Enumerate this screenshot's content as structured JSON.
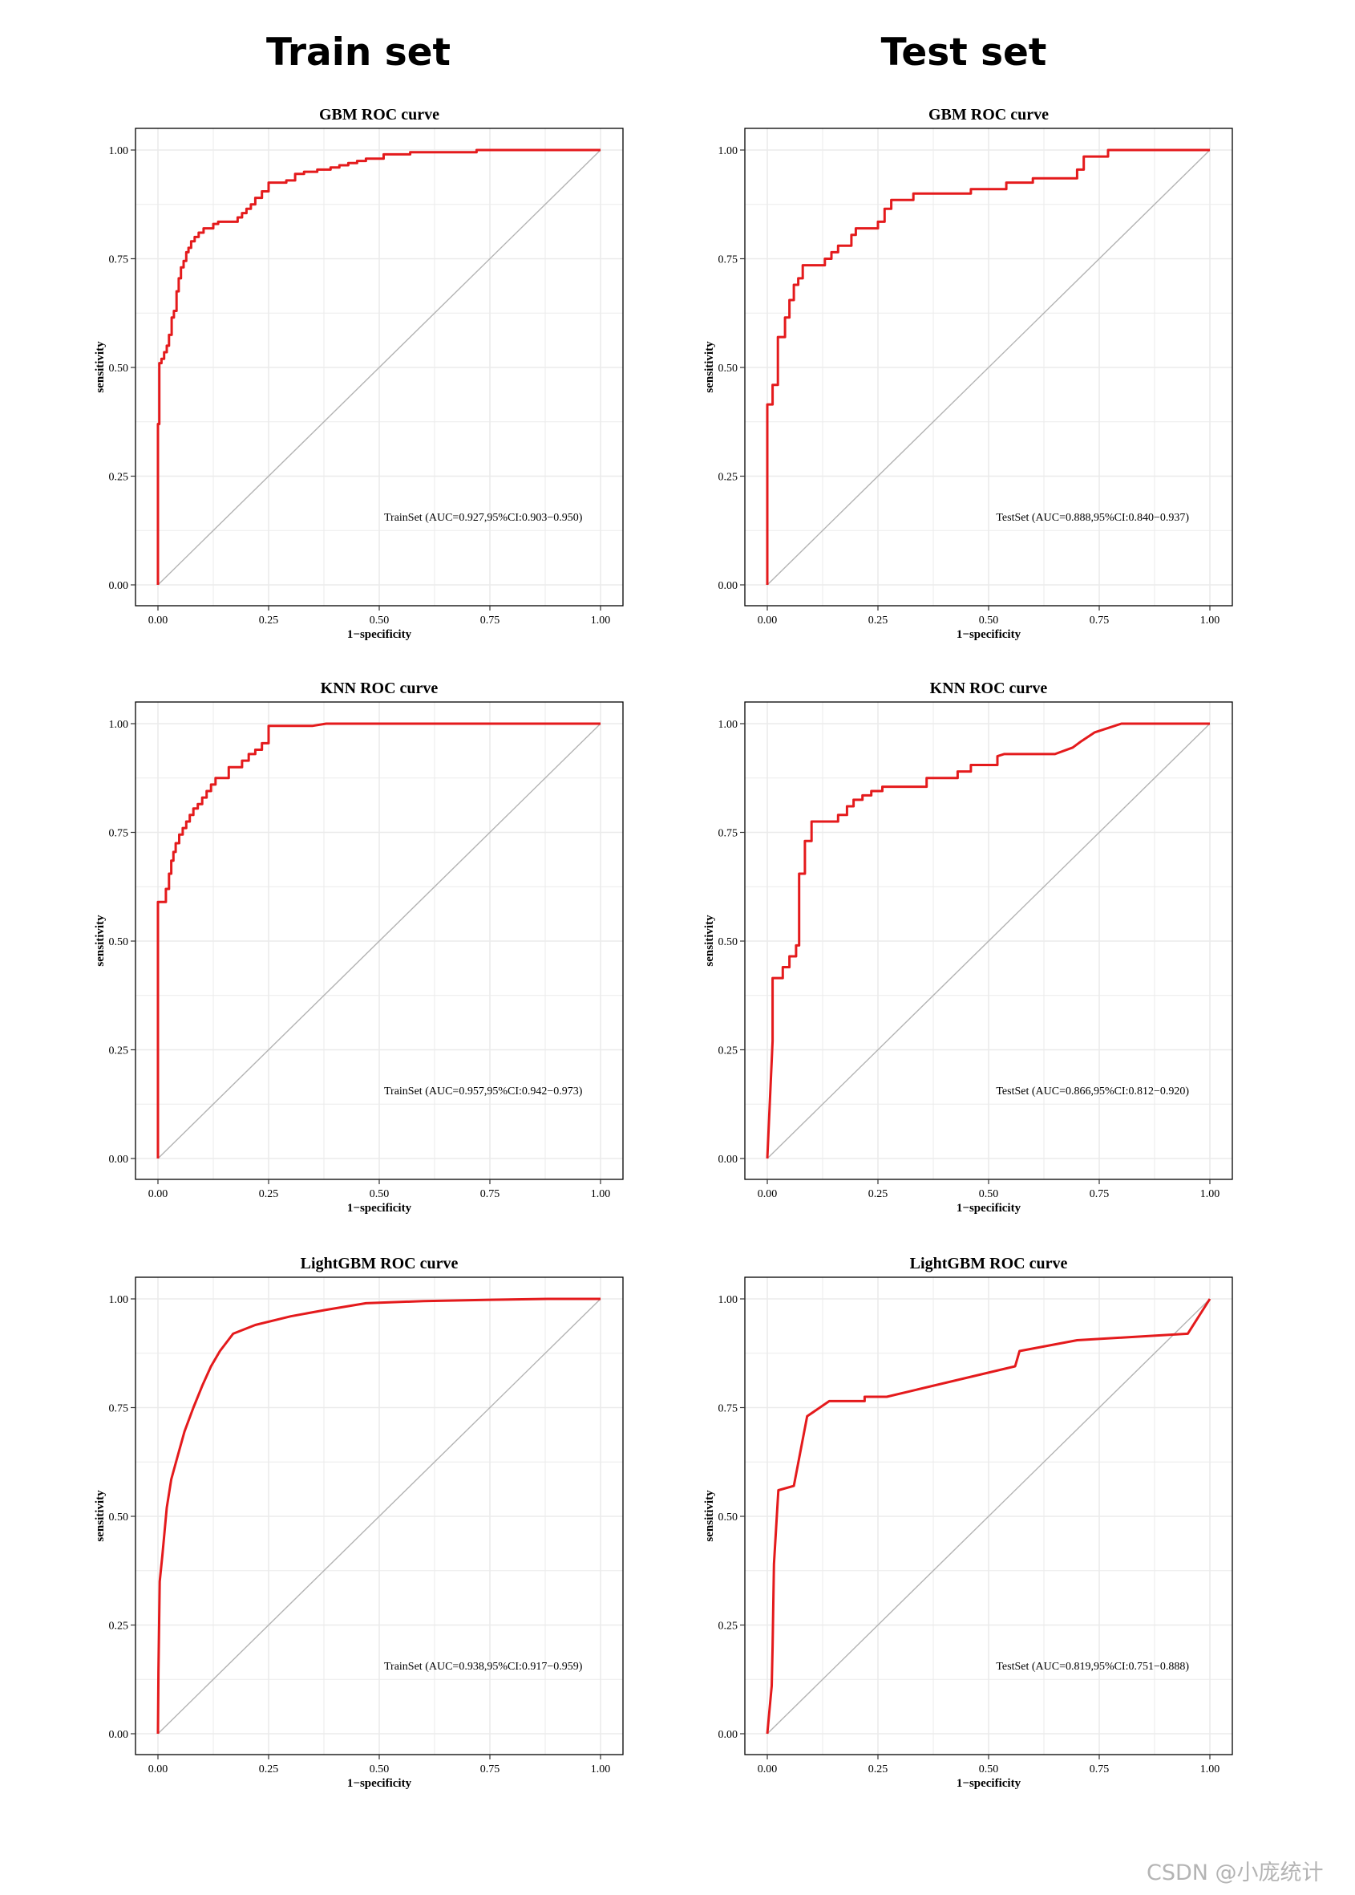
{
  "column_titles": {
    "train": "Train set",
    "test": "Test set"
  },
  "watermark": "CSDN @小庞统计",
  "colors": {
    "curve": "#e41a1c",
    "diagonal": "#b3b3b3",
    "grid": "#ebebeb",
    "frame": "#000000"
  },
  "chart_data": [
    {
      "type": "line",
      "title": "GBM ROC curve",
      "xlabel": "1−specificity",
      "ylabel": "sensitivity",
      "xlim": [
        0,
        1
      ],
      "ylim": [
        0,
        1
      ],
      "xticks": [
        "0.00",
        "0.25",
        "0.50",
        "0.75",
        "1.00"
      ],
      "yticks": [
        "0.00",
        "0.25",
        "0.50",
        "0.75",
        "1.00"
      ],
      "grid": true,
      "legend": "",
      "annotation": "TrainSet (AUC=0.927,95%CI:0.903−0.950)",
      "series": [
        {
          "step": true,
          "x": [
            0,
            0,
            0.003,
            0.003,
            0.008,
            0.008,
            0.014,
            0.014,
            0.02,
            0.02,
            0.025,
            0.025,
            0.031,
            0.031,
            0.036,
            0.036,
            0.042,
            0.042,
            0.047,
            0.047,
            0.052,
            0.052,
            0.058,
            0.058,
            0.064,
            0.064,
            0.069,
            0.069,
            0.075,
            0.075,
            0.083,
            0.083,
            0.092,
            0.092,
            0.103,
            0.103,
            0.125,
            0.125,
            0.136,
            0.136,
            0.18,
            0.18,
            0.19,
            0.19,
            0.2,
            0.2,
            0.21,
            0.21,
            0.22,
            0.22,
            0.235,
            0.235,
            0.25,
            0.25,
            0.29,
            0.29,
            0.31,
            0.31,
            0.33,
            0.33,
            0.36,
            0.36,
            0.39,
            0.39,
            0.41,
            0.41,
            0.43,
            0.43,
            0.45,
            0.45,
            0.47,
            0.47,
            0.51,
            0.51,
            0.57,
            0.57,
            0.72,
            0.72,
            0.74,
            0.74,
            1
          ],
          "y": [
            0,
            0.37,
            0.37,
            0.51,
            0.51,
            0.52,
            0.52,
            0.535,
            0.535,
            0.55,
            0.55,
            0.575,
            0.575,
            0.615,
            0.615,
            0.63,
            0.63,
            0.675,
            0.675,
            0.705,
            0.705,
            0.73,
            0.73,
            0.745,
            0.745,
            0.765,
            0.765,
            0.775,
            0.775,
            0.79,
            0.79,
            0.8,
            0.8,
            0.81,
            0.81,
            0.82,
            0.82,
            0.83,
            0.83,
            0.835,
            0.835,
            0.845,
            0.845,
            0.855,
            0.855,
            0.865,
            0.865,
            0.875,
            0.875,
            0.89,
            0.89,
            0.905,
            0.905,
            0.925,
            0.925,
            0.93,
            0.93,
            0.945,
            0.945,
            0.95,
            0.95,
            0.955,
            0.955,
            0.96,
            0.96,
            0.965,
            0.965,
            0.97,
            0.97,
            0.975,
            0.975,
            0.98,
            0.98,
            0.99,
            0.99,
            0.995,
            0.995,
            1.0,
            1.0,
            1.0,
            1.0
          ]
        }
      ]
    },
    {
      "type": "line",
      "title": "GBM ROC curve",
      "xlabel": "1−specificity",
      "ylabel": "sensitivity",
      "xlim": [
        0,
        1
      ],
      "ylim": [
        0,
        1
      ],
      "xticks": [
        "0.00",
        "0.25",
        "0.50",
        "0.75",
        "1.00"
      ],
      "yticks": [
        "0.00",
        "0.25",
        "0.50",
        "0.75",
        "1.00"
      ],
      "grid": true,
      "legend": "",
      "annotation": "TestSet (AUC=0.888,95%CI:0.840−0.937)",
      "series": [
        {
          "step": true,
          "x": [
            0,
            0,
            0.012,
            0.012,
            0.024,
            0.024,
            0.04,
            0.04,
            0.05,
            0.05,
            0.06,
            0.06,
            0.07,
            0.07,
            0.08,
            0.08,
            0.13,
            0.13,
            0.145,
            0.145,
            0.16,
            0.16,
            0.19,
            0.19,
            0.2,
            0.2,
            0.25,
            0.25,
            0.265,
            0.265,
            0.28,
            0.28,
            0.33,
            0.33,
            0.46,
            0.46,
            0.54,
            0.54,
            0.6,
            0.6,
            0.7,
            0.7,
            0.715,
            0.715,
            0.77,
            0.77,
            1
          ],
          "y": [
            0,
            0.415,
            0.415,
            0.46,
            0.46,
            0.57,
            0.57,
            0.615,
            0.615,
            0.655,
            0.655,
            0.69,
            0.69,
            0.705,
            0.705,
            0.735,
            0.735,
            0.75,
            0.75,
            0.765,
            0.765,
            0.78,
            0.78,
            0.805,
            0.805,
            0.82,
            0.82,
            0.835,
            0.835,
            0.865,
            0.865,
            0.885,
            0.885,
            0.9,
            0.9,
            0.91,
            0.91,
            0.925,
            0.925,
            0.935,
            0.935,
            0.955,
            0.955,
            0.985,
            0.985,
            1.0,
            1.0
          ]
        }
      ]
    },
    {
      "type": "line",
      "title": "KNN ROC curve",
      "xlabel": "1−specificity",
      "ylabel": "sensitivity",
      "xlim": [
        0,
        1
      ],
      "ylim": [
        0,
        1
      ],
      "xticks": [
        "0.00",
        "0.25",
        "0.50",
        "0.75",
        "1.00"
      ],
      "yticks": [
        "0.00",
        "0.25",
        "0.50",
        "0.75",
        "1.00"
      ],
      "grid": true,
      "legend": "",
      "annotation": "TrainSet (AUC=0.957,95%CI:0.942−0.973)",
      "series": [
        {
          "step": true,
          "x": [
            0,
            0,
            0.018,
            0.018,
            0.025,
            0.025,
            0.03,
            0.03,
            0.035,
            0.035,
            0.04,
            0.04,
            0.048,
            0.048,
            0.056,
            0.056,
            0.064,
            0.064,
            0.072,
            0.072,
            0.08,
            0.08,
            0.09,
            0.09,
            0.1,
            0.1,
            0.11,
            0.11,
            0.12,
            0.12,
            0.13,
            0.13,
            0.16,
            0.16,
            0.19,
            0.19,
            0.205,
            0.205,
            0.22,
            0.22,
            0.235,
            0.235,
            0.25,
            0.25,
            0.35,
            0.38,
            1
          ],
          "y": [
            0,
            0.59,
            0.59,
            0.62,
            0.62,
            0.655,
            0.655,
            0.685,
            0.685,
            0.705,
            0.705,
            0.725,
            0.725,
            0.745,
            0.745,
            0.76,
            0.76,
            0.775,
            0.775,
            0.79,
            0.79,
            0.805,
            0.805,
            0.815,
            0.815,
            0.83,
            0.83,
            0.845,
            0.845,
            0.86,
            0.86,
            0.875,
            0.875,
            0.9,
            0.9,
            0.915,
            0.915,
            0.93,
            0.93,
            0.94,
            0.94,
            0.955,
            0.955,
            0.995,
            0.995,
            1.0,
            1.0
          ]
        }
      ]
    },
    {
      "type": "line",
      "title": "KNN ROC curve",
      "xlabel": "1−specificity",
      "ylabel": "sensitivity",
      "xlim": [
        0,
        1
      ],
      "ylim": [
        0,
        1
      ],
      "xticks": [
        "0.00",
        "0.25",
        "0.50",
        "0.75",
        "1.00"
      ],
      "yticks": [
        "0.00",
        "0.25",
        "0.50",
        "0.75",
        "1.00"
      ],
      "grid": true,
      "legend": "",
      "annotation": "TestSet (AUC=0.866,95%CI:0.812−0.920)",
      "series": [
        {
          "step": false,
          "x": [
            0,
            0.012,
            0.012,
            0.035,
            0.035,
            0.05,
            0.05,
            0.065,
            0.065,
            0.072,
            0.072,
            0.085,
            0.085,
            0.1,
            0.1,
            0.16,
            0.16,
            0.18,
            0.18,
            0.195,
            0.195,
            0.215,
            0.215,
            0.235,
            0.235,
            0.26,
            0.26,
            0.36,
            0.36,
            0.43,
            0.43,
            0.46,
            0.46,
            0.52,
            0.52,
            0.535,
            0.65,
            0.69,
            0.71,
            0.74,
            0.77,
            0.8,
            1
          ],
          "y": [
            0,
            0.27,
            0.415,
            0.415,
            0.44,
            0.44,
            0.465,
            0.465,
            0.49,
            0.49,
            0.655,
            0.655,
            0.73,
            0.73,
            0.775,
            0.775,
            0.79,
            0.79,
            0.81,
            0.81,
            0.825,
            0.825,
            0.835,
            0.835,
            0.845,
            0.845,
            0.855,
            0.855,
            0.875,
            0.875,
            0.89,
            0.89,
            0.905,
            0.905,
            0.925,
            0.93,
            0.93,
            0.945,
            0.96,
            0.98,
            0.99,
            1.0,
            1.0
          ]
        }
      ]
    },
    {
      "type": "line",
      "title": "LightGBM ROC curve",
      "xlabel": "1−specificity",
      "ylabel": "sensitivity",
      "xlim": [
        0,
        1
      ],
      "ylim": [
        0,
        1
      ],
      "xticks": [
        "0.00",
        "0.25",
        "0.50",
        "0.75",
        "1.00"
      ],
      "yticks": [
        "0.00",
        "0.25",
        "0.50",
        "0.75",
        "1.00"
      ],
      "grid": true,
      "legend": "",
      "annotation": "TrainSet (AUC=0.938,95%CI:0.917−0.959)",
      "series": [
        {
          "step": false,
          "x": [
            0,
            0.001,
            0.004,
            0.01,
            0.02,
            0.03,
            0.045,
            0.06,
            0.08,
            0.1,
            0.12,
            0.14,
            0.17,
            0.22,
            0.3,
            0.38,
            0.47,
            0.6,
            0.75,
            0.88,
            1
          ],
          "y": [
            0,
            0.14,
            0.35,
            0.41,
            0.52,
            0.585,
            0.64,
            0.695,
            0.75,
            0.8,
            0.845,
            0.88,
            0.92,
            0.94,
            0.96,
            0.975,
            0.99,
            0.995,
            0.998,
            1.0,
            1.0
          ]
        }
      ]
    },
    {
      "type": "line",
      "title": "LightGBM ROC curve",
      "xlabel": "1−specificity",
      "ylabel": "sensitivity",
      "xlim": [
        0,
        1
      ],
      "ylim": [
        0,
        1
      ],
      "xticks": [
        "0.00",
        "0.25",
        "0.50",
        "0.75",
        "1.00"
      ],
      "yticks": [
        "0.00",
        "0.25",
        "0.50",
        "0.75",
        "1.00"
      ],
      "grid": true,
      "legend": "",
      "annotation": "TestSet (AUC=0.819,95%CI:0.751−0.888)",
      "series": [
        {
          "step": false,
          "x": [
            0,
            0.01,
            0.012,
            0.015,
            0.025,
            0.06,
            0.09,
            0.14,
            0.22,
            0.22,
            0.27,
            0.56,
            0.57,
            0.7,
            0.95,
            1
          ],
          "y": [
            0,
            0.11,
            0.2,
            0.39,
            0.56,
            0.57,
            0.73,
            0.765,
            0.765,
            0.775,
            0.775,
            0.845,
            0.88,
            0.905,
            0.92,
            1.0
          ]
        }
      ]
    }
  ]
}
